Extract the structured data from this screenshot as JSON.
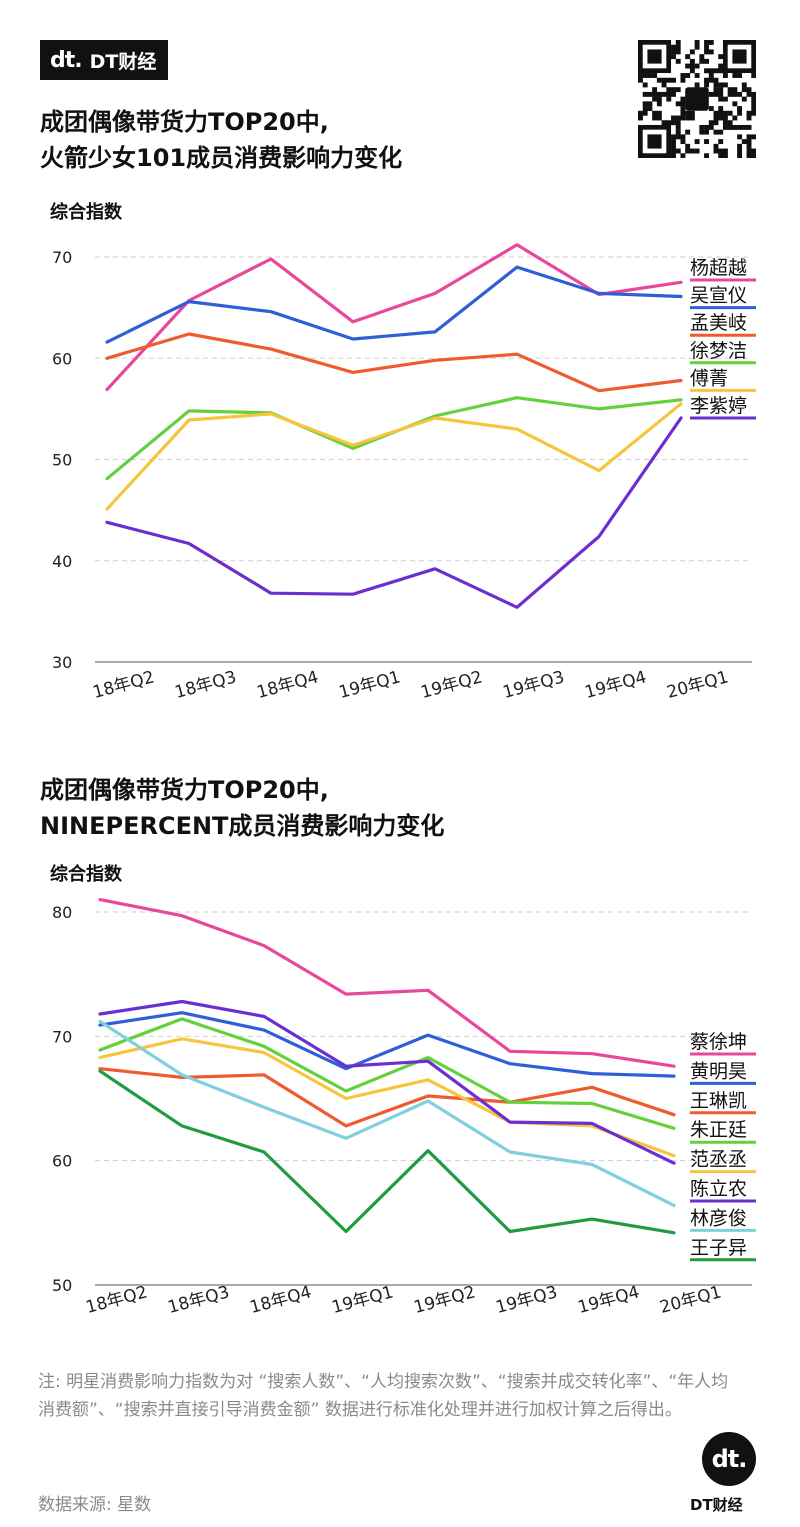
{
  "brand": {
    "mark": "dt.",
    "name": "DT财经",
    "footer_name": "DT财经"
  },
  "note": "注: 明星消费影响力指数为对 “搜索人数”、“人均搜索次数”、“搜索并成交转化率”、“年人均消费额”、“搜索并直接引导消费金额” 数据进行标准化处理并进行加权计算之后得出。",
  "source": "数据来源: 星数",
  "chart_data": [
    {
      "type": "line",
      "title_line1": "成团偶像带货力TOP20中,",
      "title_line2": "火箭少女101成员消费影响力变化",
      "ylabel": "综合指数",
      "ylim": [
        30,
        70
      ],
      "yticks": [
        30,
        40,
        50,
        60,
        70
      ],
      "grid": true,
      "legend": "right, labels at line ends",
      "categories": [
        "18年Q2",
        "18年Q3",
        "18年Q4",
        "19年Q1",
        "19年Q2",
        "19年Q3",
        "19年Q4",
        "20年Q1"
      ],
      "series": [
        {
          "name": "杨超越",
          "color": "#e8479a",
          "values": [
            56.9,
            65.7,
            69.8,
            63.6,
            66.4,
            71.2,
            66.3,
            67.5
          ]
        },
        {
          "name": "吴宣仪",
          "color": "#2f5ed8",
          "values": [
            61.6,
            65.6,
            64.6,
            61.9,
            62.6,
            69.0,
            66.4,
            66.1
          ]
        },
        {
          "name": "孟美岐",
          "color": "#ef5a2e",
          "values": [
            60.0,
            62.4,
            60.9,
            58.6,
            59.8,
            60.4,
            56.8,
            57.8
          ]
        },
        {
          "name": "徐梦洁",
          "color": "#63d13b",
          "values": [
            48.1,
            54.8,
            54.6,
            51.1,
            54.3,
            56.1,
            55.0,
            55.9
          ]
        },
        {
          "name": "傅菁",
          "color": "#f7c53d",
          "values": [
            45.1,
            53.9,
            54.5,
            51.4,
            54.1,
            53.0,
            48.9,
            55.5
          ]
        },
        {
          "name": "李紫婷",
          "color": "#6b2fd1",
          "values": [
            43.8,
            41.7,
            36.8,
            36.7,
            39.2,
            35.4,
            42.4,
            54.1
          ]
        }
      ]
    },
    {
      "type": "line",
      "title_line1": "成团偶像带货力TOP20中,",
      "title_line2": "NINEPERCENT成员消费影响力变化",
      "ylabel": "综合指数",
      "ylim": [
        50,
        80
      ],
      "yticks": [
        50,
        60,
        70,
        80
      ],
      "grid": true,
      "legend": "right, labels at line ends",
      "categories": [
        "18年Q2",
        "18年Q3",
        "18年Q4",
        "19年Q1",
        "19年Q2",
        "19年Q3",
        "19年Q4",
        "20年Q1"
      ],
      "series": [
        {
          "name": "蔡徐坤",
          "color": "#e8479a",
          "values": [
            81.0,
            79.7,
            77.3,
            73.4,
            73.7,
            68.8,
            68.6,
            67.6
          ]
        },
        {
          "name": "黄明昊",
          "color": "#2f5ed8",
          "values": [
            70.9,
            71.9,
            70.5,
            67.4,
            70.1,
            67.8,
            67.0,
            66.8
          ]
        },
        {
          "name": "王琳凯",
          "color": "#ef5a2e",
          "values": [
            67.4,
            66.7,
            66.9,
            62.8,
            65.2,
            64.7,
            65.9,
            63.7
          ]
        },
        {
          "name": "朱正廷",
          "color": "#63d13b",
          "values": [
            68.9,
            71.4,
            69.2,
            65.6,
            68.3,
            64.7,
            64.6,
            62.6
          ]
        },
        {
          "name": "范丞丞",
          "color": "#f7c53d",
          "values": [
            68.3,
            69.8,
            68.7,
            65.0,
            66.5,
            63.1,
            62.8,
            60.4
          ]
        },
        {
          "name": "陈立农",
          "color": "#6b2fd1",
          "values": [
            71.8,
            72.8,
            71.6,
            67.6,
            68.0,
            63.1,
            63.0,
            59.8
          ]
        },
        {
          "name": "林彦俊",
          "color": "#7fd0dc",
          "values": [
            71.2,
            66.9,
            64.3,
            61.8,
            64.8,
            60.7,
            59.7,
            56.4
          ]
        },
        {
          "name": "王子异",
          "color": "#1e9c3f",
          "values": [
            67.2,
            62.8,
            60.7,
            54.3,
            60.8,
            54.3,
            55.3,
            54.2
          ]
        }
      ]
    }
  ]
}
